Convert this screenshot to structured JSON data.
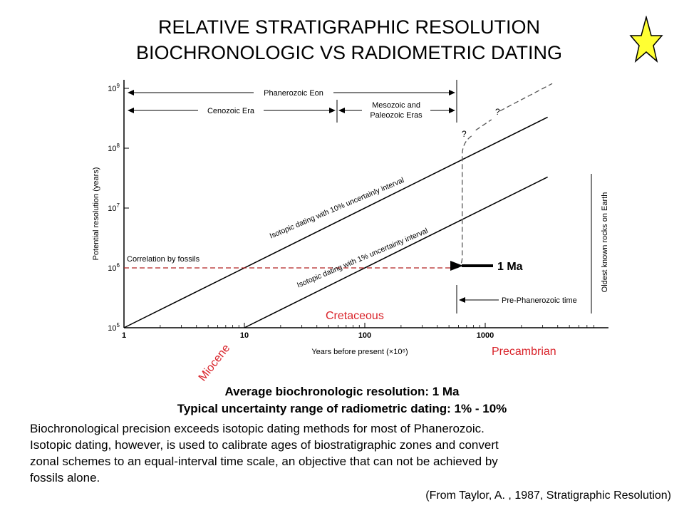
{
  "slide": {
    "title_line1": "RELATIVE STRATIGRAPHIC RESOLUTION",
    "title_line2": "BIOCHRONOLOGIC VS RADIOMETRIC DATING",
    "star_color": "#ffff33",
    "caption_line1": "Average biochronologic resolution: 1 Ma",
    "caption_line2": "Typical uncertainty range of radiometric dating: 1% - 10%",
    "paragraph": [
      "Biochronological precision exceeds isotopic dating methods for most of Phanerozoic.",
      "Isotopic dating, however, is used to calibrate ages of biostratigraphic zones and convert",
      "zonal schemes to an equal-interval time scale, an objective that can not be achieved by",
      "fossils alone."
    ],
    "source": "(From Taylor, A. , 1987, Stratigraphic Resolution)"
  },
  "chart_data": {
    "type": "line",
    "x_scale": "log",
    "y_scale": "log",
    "xlabel": "Years before present (×10⁶)",
    "ylabel": "Potential resolution (years)",
    "xlim": [
      1,
      8000
    ],
    "ylim": [
      100000,
      1000000000
    ],
    "x_ticks": [
      {
        "value": 1,
        "label": "1"
      },
      {
        "value": 10,
        "label": "10"
      },
      {
        "value": 100,
        "label": "100"
      },
      {
        "value": 1000,
        "label": "1000"
      }
    ],
    "y_ticks": [
      {
        "value": 100000,
        "base": "10",
        "exp": "5"
      },
      {
        "value": 1000000,
        "base": "10",
        "exp": "6"
      },
      {
        "value": 10000000,
        "base": "10",
        "exp": "7"
      },
      {
        "value": 100000000,
        "base": "10",
        "exp": "8"
      },
      {
        "value": 1000000000,
        "base": "10",
        "exp": "9"
      }
    ],
    "series": [
      {
        "name": "Isotopic dating with 10% uncertainly interval",
        "x": [
          1,
          3300
        ],
        "y": [
          100000,
          330000000
        ]
      },
      {
        "name": "Isotopic dating with 1% uncertainty interval",
        "x": [
          10,
          3300
        ],
        "y": [
          100000,
          33000000
        ]
      },
      {
        "name": "Correlation by fossils",
        "x": [
          1,
          570
        ],
        "y": [
          1000000,
          1000000
        ]
      }
    ],
    "colors": {
      "fossil_line": "#b22222",
      "isotopic_lines": "#000000",
      "annotation_red": "#d9232a"
    },
    "time_spans": {
      "phanerozoic": "Phanerozoic Eon",
      "cenozoic": "Cenozoic Era",
      "mesozoic_1": "Mesozoic and",
      "mesozoic_2": "Paleozoic Eras",
      "pre_phanerozoic": "Pre-Phanerozoic time"
    },
    "oldest_rocks_label": "Oldest known rocks on Earth",
    "question_mark": "?",
    "arrow_label": "1 Ma",
    "red_labels": {
      "miocene": "Miocene",
      "cretaceous": "Cretaceous",
      "precambrian": "Precambrian"
    }
  }
}
